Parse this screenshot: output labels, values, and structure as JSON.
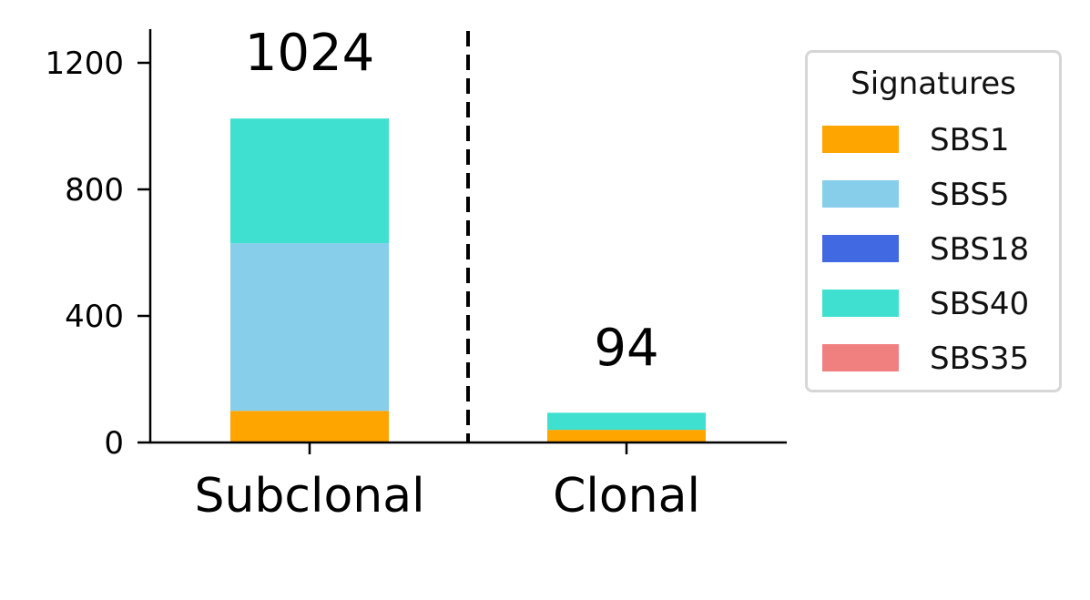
{
  "chart_data": {
    "type": "bar",
    "stacked": true,
    "categories": [
      "Subclonal",
      "Clonal"
    ],
    "series": [
      {
        "name": "SBS1",
        "color": "#FFA500",
        "values": [
          100,
          40
        ]
      },
      {
        "name": "SBS5",
        "color": "#87CEEB",
        "values": [
          530,
          0
        ]
      },
      {
        "name": "SBS18",
        "color": "#4169E1",
        "values": [
          0,
          0
        ]
      },
      {
        "name": "SBS40",
        "color": "#40E0D0",
        "values": [
          394,
          54
        ]
      },
      {
        "name": "SBS35",
        "color": "#F08080",
        "values": [
          0,
          0
        ]
      }
    ],
    "totals": [
      "1024",
      "94"
    ],
    "yticks": [
      0,
      400,
      800,
      1200
    ],
    "ylim": [
      0,
      1300
    ],
    "legend": {
      "title": "Signatures",
      "placement": "right"
    },
    "divider": "dashed-vertical-between-categories",
    "grid": false
  }
}
